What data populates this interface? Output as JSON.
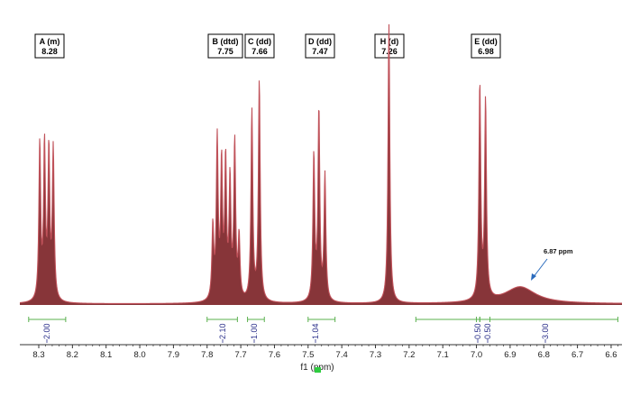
{
  "chart_data": {
    "type": "line",
    "title": "",
    "xlabel": "f1 (ppm)",
    "ylabel": "",
    "xlim": [
      8.33,
      6.58
    ],
    "x_reversed": true,
    "x_ticks": [
      "8.3",
      "8.2",
      "8.1",
      "8.0",
      "7.9",
      "7.8",
      "7.7",
      "7.6",
      "7.5",
      "7.4",
      "7.3",
      "7.2",
      "7.1",
      "7.0",
      "6.9",
      "6.8",
      "6.7",
      "6.6"
    ],
    "grid": false,
    "line_color": "#c0525a",
    "fill_color": "#7a1f23",
    "peak_labels": [
      {
        "id": "A",
        "text": "A (m)",
        "ppm_label": "8.28",
        "ppm": 8.28
      },
      {
        "id": "B",
        "text": "B (dtd)",
        "ppm_label": "7.75",
        "ppm": 7.75
      },
      {
        "id": "C",
        "text": "C (dd)",
        "ppm_label": "7.66",
        "ppm": 7.66
      },
      {
        "id": "D",
        "text": "D (dd)",
        "ppm_label": "7.47",
        "ppm": 7.47
      },
      {
        "id": "H",
        "text": "H (d)",
        "ppm_label": "7.26",
        "ppm": 7.26
      },
      {
        "id": "E",
        "text": "E (dd)",
        "ppm_label": "6.98",
        "ppm": 6.98
      }
    ],
    "peaks": [
      {
        "ppm": 8.297,
        "height": 0.56
      },
      {
        "ppm": 8.283,
        "height": 0.55
      },
      {
        "ppm": 8.27,
        "height": 0.53
      },
      {
        "ppm": 8.257,
        "height": 0.54
      },
      {
        "ppm": 7.783,
        "height": 0.26
      },
      {
        "ppm": 7.77,
        "height": 0.57
      },
      {
        "ppm": 7.757,
        "height": 0.48
      },
      {
        "ppm": 7.745,
        "height": 0.49
      },
      {
        "ppm": 7.732,
        "height": 0.42
      },
      {
        "ppm": 7.718,
        "height": 0.56
      },
      {
        "ppm": 7.705,
        "height": 0.22
      },
      {
        "ppm": 7.667,
        "height": 0.68
      },
      {
        "ppm": 7.645,
        "height": 0.79
      },
      {
        "ppm": 7.483,
        "height": 0.52
      },
      {
        "ppm": 7.468,
        "height": 0.68
      },
      {
        "ppm": 7.45,
        "height": 0.45
      },
      {
        "ppm": 7.26,
        "height": 1.0
      },
      {
        "ppm": 6.99,
        "height": 0.77
      },
      {
        "ppm": 6.973,
        "height": 0.71
      }
    ],
    "broad_peak": {
      "ppm": 6.87,
      "height": 0.06,
      "label": "6.87 ppm"
    },
    "integrals": [
      {
        "from": 8.33,
        "to": 8.22,
        "value": "2.00"
      },
      {
        "from": 7.8,
        "to": 7.71,
        "value": "2.10"
      },
      {
        "from": 7.68,
        "to": 7.63,
        "value": "1.00"
      },
      {
        "from": 7.5,
        "to": 7.42,
        "value": "1.04"
      },
      {
        "from": 7.0,
        "to": 6.99,
        "value": "0.50"
      },
      {
        "from": 6.99,
        "to": 6.96,
        "value": "0.50"
      },
      {
        "from": 7.18,
        "to": 6.58,
        "value": "3.00"
      }
    ]
  }
}
